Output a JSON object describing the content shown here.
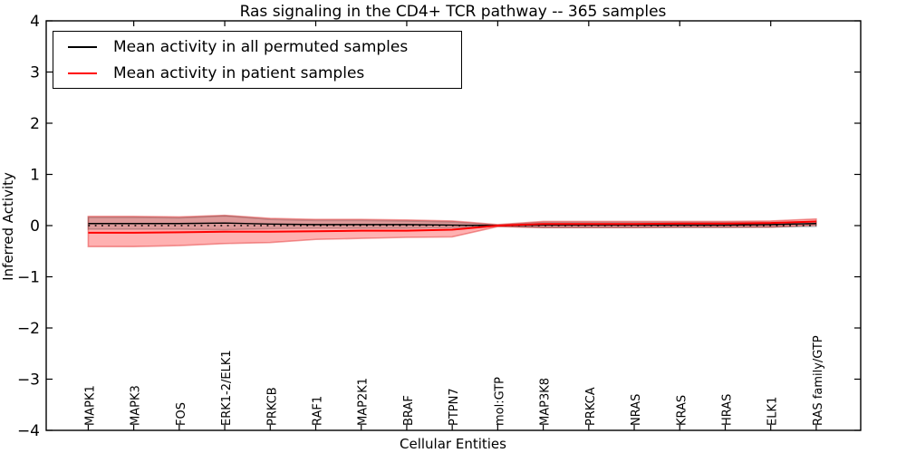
{
  "figure": {
    "title": "Ras signaling in the CD4+ TCR pathway -- 365 samples",
    "xlabel": "Cellular Entities",
    "ylabel": "Inferred Activity"
  },
  "legend": {
    "position": "upper left",
    "items": [
      {
        "label": "Mean activity in all permuted samples",
        "color": "#000000"
      },
      {
        "label": "Mean activity in patient samples",
        "color": "#ff0000"
      }
    ]
  },
  "chart_data": {
    "type": "line",
    "title": "Ras signaling in the CD4+ TCR pathway -- 365 samples",
    "xlabel": "Cellular Entities",
    "ylabel": "Inferred Activity",
    "ylim": [
      -4,
      4
    ],
    "yticks": [
      4,
      3,
      2,
      1,
      0,
      -1,
      -2,
      -3,
      -4
    ],
    "grid": false,
    "legend_position": "upper left",
    "categories": [
      "MAPK1",
      "MAPK3",
      "FOS",
      "ERK1-2/ELK1",
      "PRKCB",
      "RAF1",
      "MAP2K1",
      "BRAF",
      "PTPN7",
      "mol:GTP",
      "MAP3K8",
      "PRKCA",
      "NRAS",
      "KRAS",
      "HRAS",
      "ELK1",
      "RAS family/GTP"
    ],
    "series": [
      {
        "name": "Mean activity in all permuted samples",
        "color": "#000000",
        "style": "solid",
        "width": 1.4,
        "values": [
          0.04,
          0.04,
          0.04,
          0.05,
          0.03,
          0.02,
          0.02,
          0.02,
          0.01,
          0.0,
          0.01,
          0.01,
          0.01,
          0.01,
          0.01,
          0.02,
          0.04
        ]
      },
      {
        "name": "Mean activity in patient samples",
        "color": "#ff0000",
        "style": "solid",
        "width": 2,
        "values": [
          -0.14,
          -0.14,
          -0.13,
          -0.12,
          -0.12,
          -0.11,
          -0.1,
          -0.1,
          -0.08,
          0.0,
          0.03,
          0.03,
          0.03,
          0.04,
          0.04,
          0.05,
          0.08
        ]
      }
    ],
    "bands": [
      {
        "name": "patient-range",
        "fill": "rgba(255,60,60,0.40)",
        "edge": "rgba(225,40,40,0.45)",
        "upper": [
          0.18,
          0.18,
          0.17,
          0.2,
          0.14,
          0.12,
          0.12,
          0.11,
          0.09,
          0.02,
          0.08,
          0.08,
          0.08,
          0.08,
          0.08,
          0.09,
          0.13
        ],
        "lower": [
          -0.41,
          -0.41,
          -0.39,
          -0.35,
          -0.33,
          -0.27,
          -0.25,
          -0.23,
          -0.22,
          -0.02,
          -0.04,
          -0.04,
          -0.04,
          -0.03,
          -0.03,
          -0.03,
          0.01
        ]
      },
      {
        "name": "permuted-range",
        "fill": "rgba(0,0,0,0.13)",
        "edge": "rgba(0,0,0,0.18)",
        "upper": [
          0.16,
          0.16,
          0.15,
          0.19,
          0.12,
          0.1,
          0.1,
          0.09,
          0.07,
          0.01,
          0.06,
          0.06,
          0.06,
          0.06,
          0.06,
          0.06,
          0.08
        ],
        "lower": [
          -0.07,
          -0.07,
          -0.07,
          -0.08,
          -0.06,
          -0.05,
          -0.05,
          -0.05,
          -0.04,
          -0.01,
          -0.04,
          -0.04,
          -0.04,
          -0.04,
          -0.04,
          -0.03,
          -0.02
        ]
      }
    ],
    "zero_line": {
      "value": 0,
      "style": "dotted",
      "color": "#000000"
    },
    "top_ticks_at_indices": [
      1,
      3,
      5,
      7,
      9,
      11,
      13,
      15
    ]
  }
}
